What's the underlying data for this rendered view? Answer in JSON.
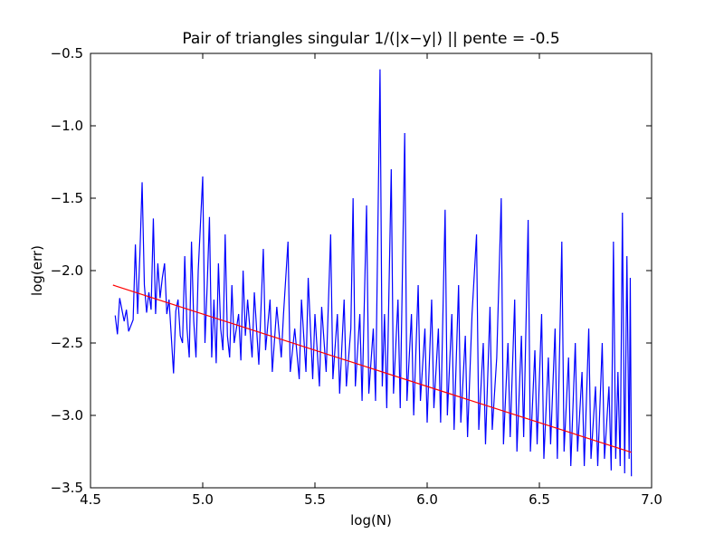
{
  "chart_data": {
    "type": "line",
    "title": "Pair of triangles singular 1/(|x−y|) || pente = -0.5",
    "x_label": "log(N)",
    "y_label": "log(err)",
    "xlim": [
      4.5,
      7.0
    ],
    "ylim": [
      -3.5,
      -0.5
    ],
    "xticks": [
      4.5,
      {
        "value": 5,
        "label": "5.0"
      },
      5.5,
      {
        "value": 6,
        "label": "6.0"
      },
      6.5,
      {
        "value": 7,
        "label": "7.0"
      }
    ],
    "yticks": [
      {
        "value": -3.5,
        "label": "−3.5"
      },
      {
        "value": -3,
        "label": "−3.0"
      },
      {
        "value": -2.5,
        "label": "−2.5"
      },
      {
        "value": -2,
        "label": "−2.0"
      },
      {
        "value": -1.5,
        "label": "−1.5"
      },
      {
        "value": -1,
        "label": "−1.0"
      },
      {
        "value": -0.5,
        "label": "−0.5"
      }
    ],
    "series": [
      {
        "color": "#0000ff",
        "x": [
          4.61,
          4.62,
          4.63,
          4.65,
          4.66,
          4.67,
          4.69,
          4.7,
          4.71,
          4.72,
          4.73,
          4.74,
          4.75,
          4.76,
          4.77,
          4.78,
          4.79,
          4.8,
          4.81,
          4.82,
          4.83,
          4.84,
          4.85,
          4.87,
          4.88,
          4.89,
          4.9,
          4.91,
          4.92,
          4.93,
          4.94,
          4.95,
          4.96,
          4.97,
          4.98,
          5.0,
          5.01,
          5.02,
          5.03,
          5.04,
          5.05,
          5.06,
          5.07,
          5.08,
          5.09,
          5.1,
          5.11,
          5.12,
          5.13,
          5.14,
          5.16,
          5.17,
          5.18,
          5.19,
          5.2,
          5.22,
          5.23,
          5.25,
          5.27,
          5.28,
          5.3,
          5.31,
          5.33,
          5.35,
          5.36,
          5.38,
          5.39,
          5.41,
          5.43,
          5.44,
          5.46,
          5.47,
          5.49,
          5.5,
          5.52,
          5.53,
          5.55,
          5.57,
          5.58,
          5.6,
          5.61,
          5.63,
          5.64,
          5.66,
          5.67,
          5.68,
          5.7,
          5.71,
          5.73,
          5.74,
          5.76,
          5.77,
          5.79,
          5.8,
          5.81,
          5.82,
          5.84,
          5.85,
          5.87,
          5.88,
          5.9,
          5.91,
          5.93,
          5.94,
          5.96,
          5.97,
          5.99,
          6.0,
          6.02,
          6.03,
          6.05,
          6.06,
          6.08,
          6.09,
          6.11,
          6.12,
          6.14,
          6.15,
          6.17,
          6.18,
          6.2,
          6.22,
          6.23,
          6.25,
          6.26,
          6.28,
          6.29,
          6.31,
          6.33,
          6.34,
          6.36,
          6.37,
          6.39,
          6.4,
          6.42,
          6.43,
          6.45,
          6.46,
          6.48,
          6.49,
          6.51,
          6.52,
          6.54,
          6.55,
          6.57,
          6.58,
          6.6,
          6.61,
          6.63,
          6.64,
          6.66,
          6.67,
          6.69,
          6.7,
          6.72,
          6.73,
          6.75,
          6.76,
          6.78,
          6.79,
          6.81,
          6.82,
          6.83,
          6.84,
          6.85,
          6.86,
          6.87,
          6.88,
          6.89,
          6.9,
          6.905,
          6.91
        ],
        "values": [
          -2.31,
          -2.44,
          -2.19,
          -2.35,
          -2.27,
          -2.42,
          -2.34,
          -1.82,
          -2.3,
          -1.89,
          -1.39,
          -2.1,
          -2.29,
          -2.15,
          -2.27,
          -1.64,
          -2.3,
          -1.95,
          -2.19,
          -2.05,
          -1.95,
          -2.3,
          -2.2,
          -2.71,
          -2.28,
          -2.2,
          -2.45,
          -2.5,
          -1.9,
          -2.4,
          -2.6,
          -1.8,
          -2.35,
          -2.6,
          -2.0,
          -1.35,
          -2.5,
          -2.1,
          -1.63,
          -2.6,
          -2.2,
          -2.64,
          -1.95,
          -2.4,
          -2.55,
          -1.75,
          -2.45,
          -2.6,
          -2.1,
          -2.5,
          -2.3,
          -2.62,
          -2.0,
          -2.45,
          -2.2,
          -2.6,
          -2.15,
          -2.65,
          -1.85,
          -2.55,
          -2.2,
          -2.7,
          -2.25,
          -2.6,
          -2.3,
          -1.8,
          -2.7,
          -2.4,
          -2.75,
          -2.2,
          -2.7,
          -2.05,
          -2.75,
          -2.3,
          -2.8,
          -2.25,
          -2.7,
          -1.75,
          -2.75,
          -2.3,
          -2.85,
          -2.2,
          -2.8,
          -2.4,
          -1.5,
          -2.8,
          -2.3,
          -2.9,
          -1.55,
          -2.85,
          -2.4,
          -2.9,
          -0.61,
          -2.8,
          -2.3,
          -2.95,
          -1.3,
          -2.85,
          -2.2,
          -2.95,
          -1.05,
          -2.9,
          -2.3,
          -3.0,
          -2.1,
          -2.9,
          -2.4,
          -3.05,
          -2.2,
          -2.95,
          -2.4,
          -3.05,
          -1.58,
          -3.0,
          -2.3,
          -3.1,
          -2.1,
          -3.05,
          -2.45,
          -3.15,
          -2.3,
          -1.75,
          -3.1,
          -2.5,
          -3.2,
          -2.25,
          -3.1,
          -2.6,
          -1.5,
          -3.2,
          -2.5,
          -3.15,
          -2.2,
          -3.25,
          -2.45,
          -3.15,
          -1.65,
          -3.25,
          -2.55,
          -3.2,
          -2.3,
          -3.3,
          -2.6,
          -3.2,
          -2.4,
          -3.3,
          -1.8,
          -3.25,
          -2.6,
          -3.35,
          -2.5,
          -3.25,
          -2.7,
          -3.35,
          -2.4,
          -3.3,
          -2.8,
          -3.35,
          -2.5,
          -3.3,
          -2.8,
          -3.38,
          -1.8,
          -3.3,
          -2.7,
          -3.35,
          -1.6,
          -3.4,
          -1.9,
          -3.3,
          -2.05,
          -3.42
        ]
      },
      {
        "color": "#ff0000",
        "x": [
          4.6,
          6.91
        ],
        "values": [
          -2.1,
          -3.255
        ]
      }
    ]
  }
}
